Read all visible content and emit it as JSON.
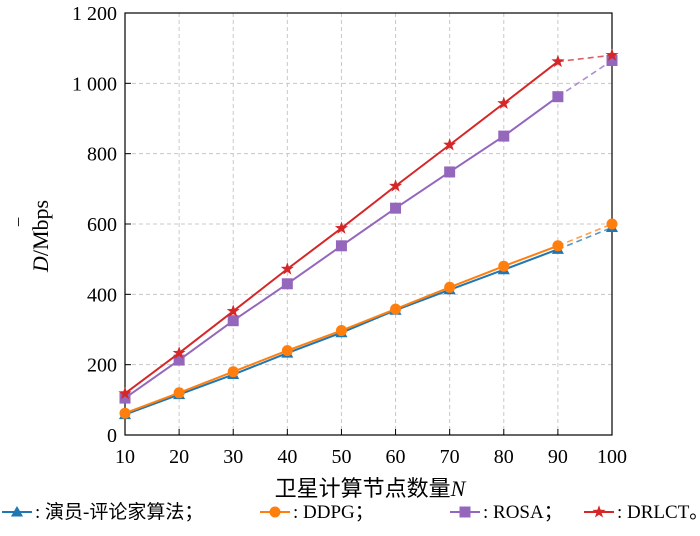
{
  "chart_data": {
    "type": "line",
    "xlabel": "卫星计算节点数量",
    "xlabel_var": "N",
    "ylabel_var": "D",
    "ylabel_unit": "/Mbps",
    "x": [
      10,
      20,
      30,
      40,
      50,
      60,
      70,
      80,
      90,
      100
    ],
    "x_ticks": [
      "10",
      "20",
      "30",
      "40",
      "50",
      "60",
      "70",
      "80",
      "90",
      "100"
    ],
    "y_ticks": [
      "0",
      "200",
      "400",
      "600",
      "800",
      "1 000",
      "1 200"
    ],
    "y_tick_values": [
      0,
      200,
      400,
      600,
      800,
      1000,
      1200
    ],
    "xlim": [
      10,
      100
    ],
    "ylim": [
      0,
      1200
    ],
    "grid": true,
    "dashed_last_segment": true,
    "legend_position": "bottom",
    "series": [
      {
        "name": "演员-评论家算法",
        "color": "#1f77b4",
        "marker": "triangle",
        "values": [
          58,
          115,
          172,
          233,
          291,
          355,
          413,
          470,
          528,
          590
        ]
      },
      {
        "name": "DDPG",
        "color": "#ff7f0e",
        "marker": "circle",
        "values": [
          62,
          120,
          180,
          240,
          297,
          358,
          420,
          480,
          538,
          600
        ]
      },
      {
        "name": "ROSA",
        "color": "#9467bd",
        "marker": "square",
        "values": [
          105,
          213,
          325,
          430,
          538,
          645,
          748,
          850,
          962,
          1065
        ]
      },
      {
        "name": "DRLCT",
        "color": "#d62728",
        "marker": "star",
        "values": [
          118,
          233,
          352,
          472,
          588,
          708,
          825,
          943,
          1062,
          1080
        ]
      }
    ],
    "legend": {
      "separator": ": ",
      "delimiters": [
        "；",
        "；",
        "；",
        "。"
      ]
    }
  }
}
